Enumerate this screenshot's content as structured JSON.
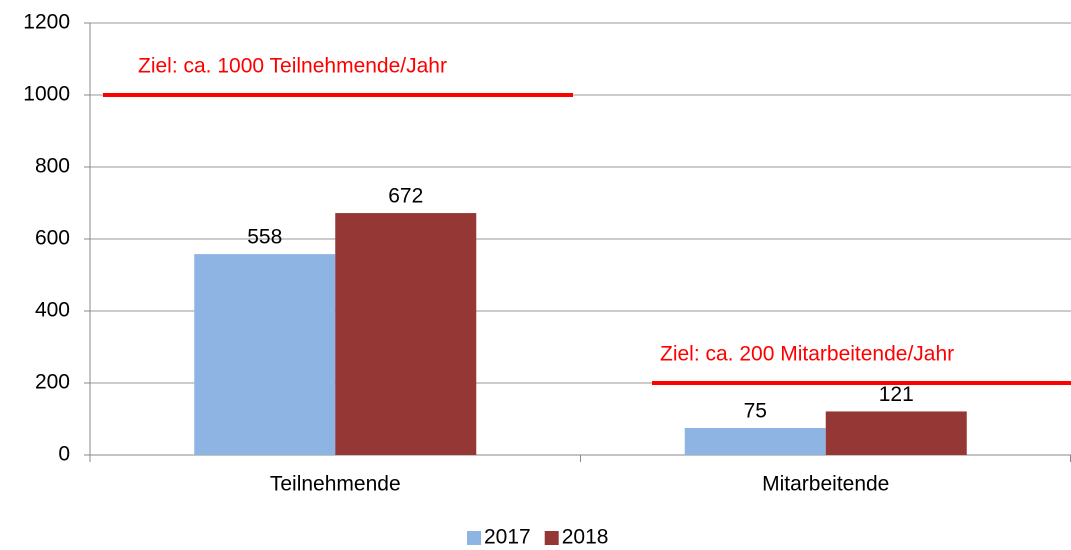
{
  "chart_data": {
    "type": "bar",
    "categories": [
      "Teilnehmende",
      "Mitarbeitende"
    ],
    "series": [
      {
        "name": "2017",
        "color": "#8eb4e3",
        "values": [
          558,
          75
        ]
      },
      {
        "name": "2018",
        "color": "#953735",
        "values": [
          672,
          121
        ]
      }
    ],
    "ylim": [
      0,
      1200
    ],
    "yticks": [
      0,
      200,
      400,
      600,
      800,
      1000,
      1200
    ],
    "grid": true,
    "legend": "bottom",
    "targets": [
      {
        "label": "Ziel: ca. 1000 Teilnehmende/Jahr",
        "value": 1000,
        "color": "#ff0000"
      },
      {
        "label": "Ziel: ca. 200 Mitarbeitende/Jahr",
        "value": 200,
        "color": "#ff0000"
      }
    ]
  }
}
